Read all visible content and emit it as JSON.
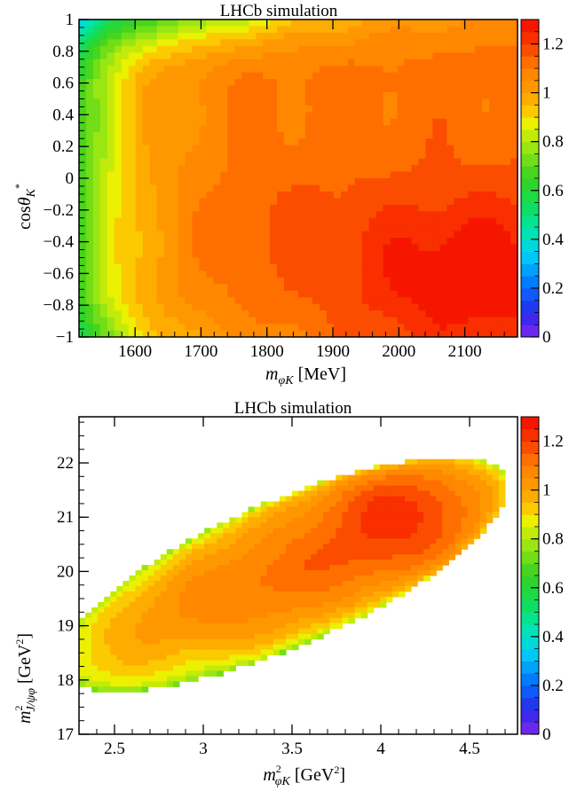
{
  "chart_data": [
    {
      "type": "heatmap",
      "title": "LHCb simulation",
      "xlabel": {
        "var": "m",
        "sub": "φK",
        "unit": "[MeV]"
      },
      "ylabel": {
        "base": "cos",
        "sym": "θ",
        "sub": "K",
        "sup": "*"
      },
      "xlim": [
        1515,
        2180
      ],
      "ylim": [
        -1,
        1
      ],
      "xticks": [
        1600,
        1700,
        1800,
        1900,
        2000,
        2100
      ],
      "xtick_labels": [
        "1600",
        "1700",
        "1800",
        "1900",
        "2000",
        "2100"
      ],
      "yticks": [
        -1,
        -0.8,
        -0.6,
        -0.4,
        -0.2,
        0,
        0.2,
        0.4,
        0.6,
        0.8,
        1
      ],
      "ytick_labels": [
        "−1",
        "−0.8",
        "−0.6",
        "−0.4",
        "−0.2",
        "0",
        "0.2",
        "0.4",
        "0.6",
        "0.8",
        "1"
      ],
      "zlim": [
        0,
        1.3
      ],
      "zticks": [
        0,
        0.2,
        0.4,
        0.6,
        0.8,
        1,
        1.2
      ],
      "ztick_labels": [
        "0",
        "0.2",
        "0.4",
        "0.6",
        "0.8",
        "1",
        "1.2"
      ],
      "colormap": "rainbow (violet → blue → cyan → green → yellow → orange → red)",
      "features": "efficiency ~0.7 at low m_phiK edge, rising to ~1.0 by 1650 MeV and ~1.1 in the core; red region (~1.25) at high m_phiK and negative cos theta; green band near cos theta = +1 at low mass"
    },
    {
      "type": "heatmap",
      "title": "LHCb simulation",
      "xlabel": {
        "var": "m",
        "sup": "2",
        "sub": "φK",
        "unit": "[GeV",
        "unit_sup": "2",
        "unit_end": "]"
      },
      "ylabel": {
        "var": "m",
        "sup": "2",
        "sub": "J/ψφ",
        "unit": "[GeV",
        "unit_sup": "2",
        "unit_end": "]"
      },
      "xlim": [
        2.3,
        4.77
      ],
      "ylim": [
        17.0,
        22.85
      ],
      "xticks": [
        2.5,
        3,
        3.5,
        4,
        4.5
      ],
      "xtick_labels": [
        "2.5",
        "3",
        "3.5",
        "4",
        "4.5"
      ],
      "yticks": [
        17,
        18,
        19,
        20,
        21,
        22
      ],
      "ytick_labels": [
        "17",
        "18",
        "19",
        "20",
        "21",
        "22"
      ],
      "zlim": [
        0,
        1.3
      ],
      "zticks": [
        0,
        0.2,
        0.4,
        0.6,
        0.8,
        1,
        1.2
      ],
      "ztick_labels": [
        "0",
        "0.2",
        "0.4",
        "0.6",
        "0.8",
        "1",
        "1.2"
      ],
      "colormap": "rainbow (violet → blue → cyan → green → yellow → orange → red)",
      "features": "elliptical Dalitz-plot boundary tilted from upper-left to lower-right; green (~0.7) at boundary, orange (~1.1) interior, red (~1.25) along upper-right edge"
    }
  ]
}
